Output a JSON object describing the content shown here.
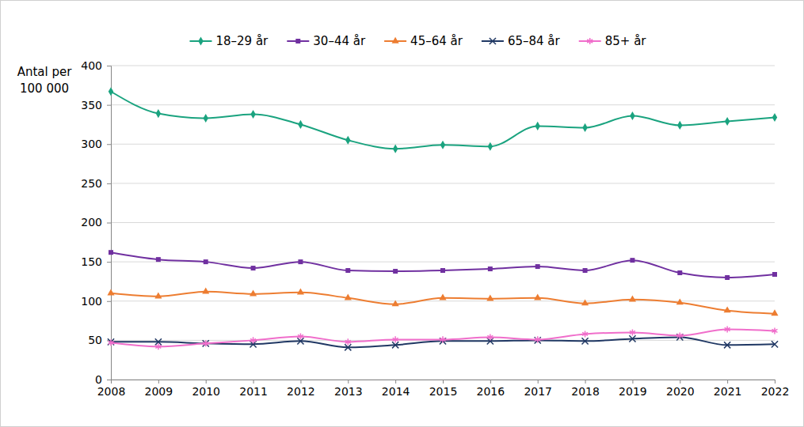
{
  "chart_data": {
    "type": "line",
    "y_label": [
      "Antal per",
      "100 000"
    ],
    "x": [
      2008,
      2009,
      2010,
      2011,
      2012,
      2013,
      2014,
      2015,
      2016,
      2017,
      2018,
      2019,
      2020,
      2021,
      2022
    ],
    "xlim": [
      2008,
      2022
    ],
    "xticks": [
      2008,
      2009,
      2010,
      2011,
      2012,
      2013,
      2014,
      2015,
      2016,
      2017,
      2018,
      2019,
      2020,
      2021,
      2022
    ],
    "ylim": [
      0,
      400
    ],
    "yticks": [
      0,
      50,
      100,
      150,
      200,
      250,
      300,
      350,
      400
    ],
    "grid": true,
    "legend": "top",
    "series": [
      {
        "name": "18–29 år",
        "color": "#1aa37f",
        "marker": "diamond",
        "values": [
          367,
          339,
          333,
          338,
          325,
          305,
          294,
          299,
          297,
          323,
          321,
          336,
          324,
          329,
          334
        ]
      },
      {
        "name": "30–44 år",
        "color": "#7030a0",
        "marker": "square",
        "values": [
          162,
          153,
          150,
          142,
          150,
          139,
          138,
          139,
          141,
          144,
          139,
          152,
          136,
          130,
          134
        ]
      },
      {
        "name": "45–64 år",
        "color": "#ed7d31",
        "marker": "triangle",
        "values": [
          110,
          106,
          112,
          109,
          111,
          104,
          96,
          104,
          103,
          104,
          97,
          102,
          98,
          88,
          84
        ]
      },
      {
        "name": "65–84 år",
        "color": "#203864",
        "marker": "x",
        "values": [
          48,
          48,
          46,
          45,
          49,
          41,
          44,
          49,
          49,
          50,
          49,
          52,
          54,
          44,
          45
        ]
      },
      {
        "name": "85+ år",
        "color": "#f06ecb",
        "marker": "asterisk",
        "values": [
          47,
          42,
          46,
          50,
          55,
          48,
          51,
          51,
          54,
          51,
          58,
          60,
          56,
          64,
          62
        ]
      }
    ]
  }
}
